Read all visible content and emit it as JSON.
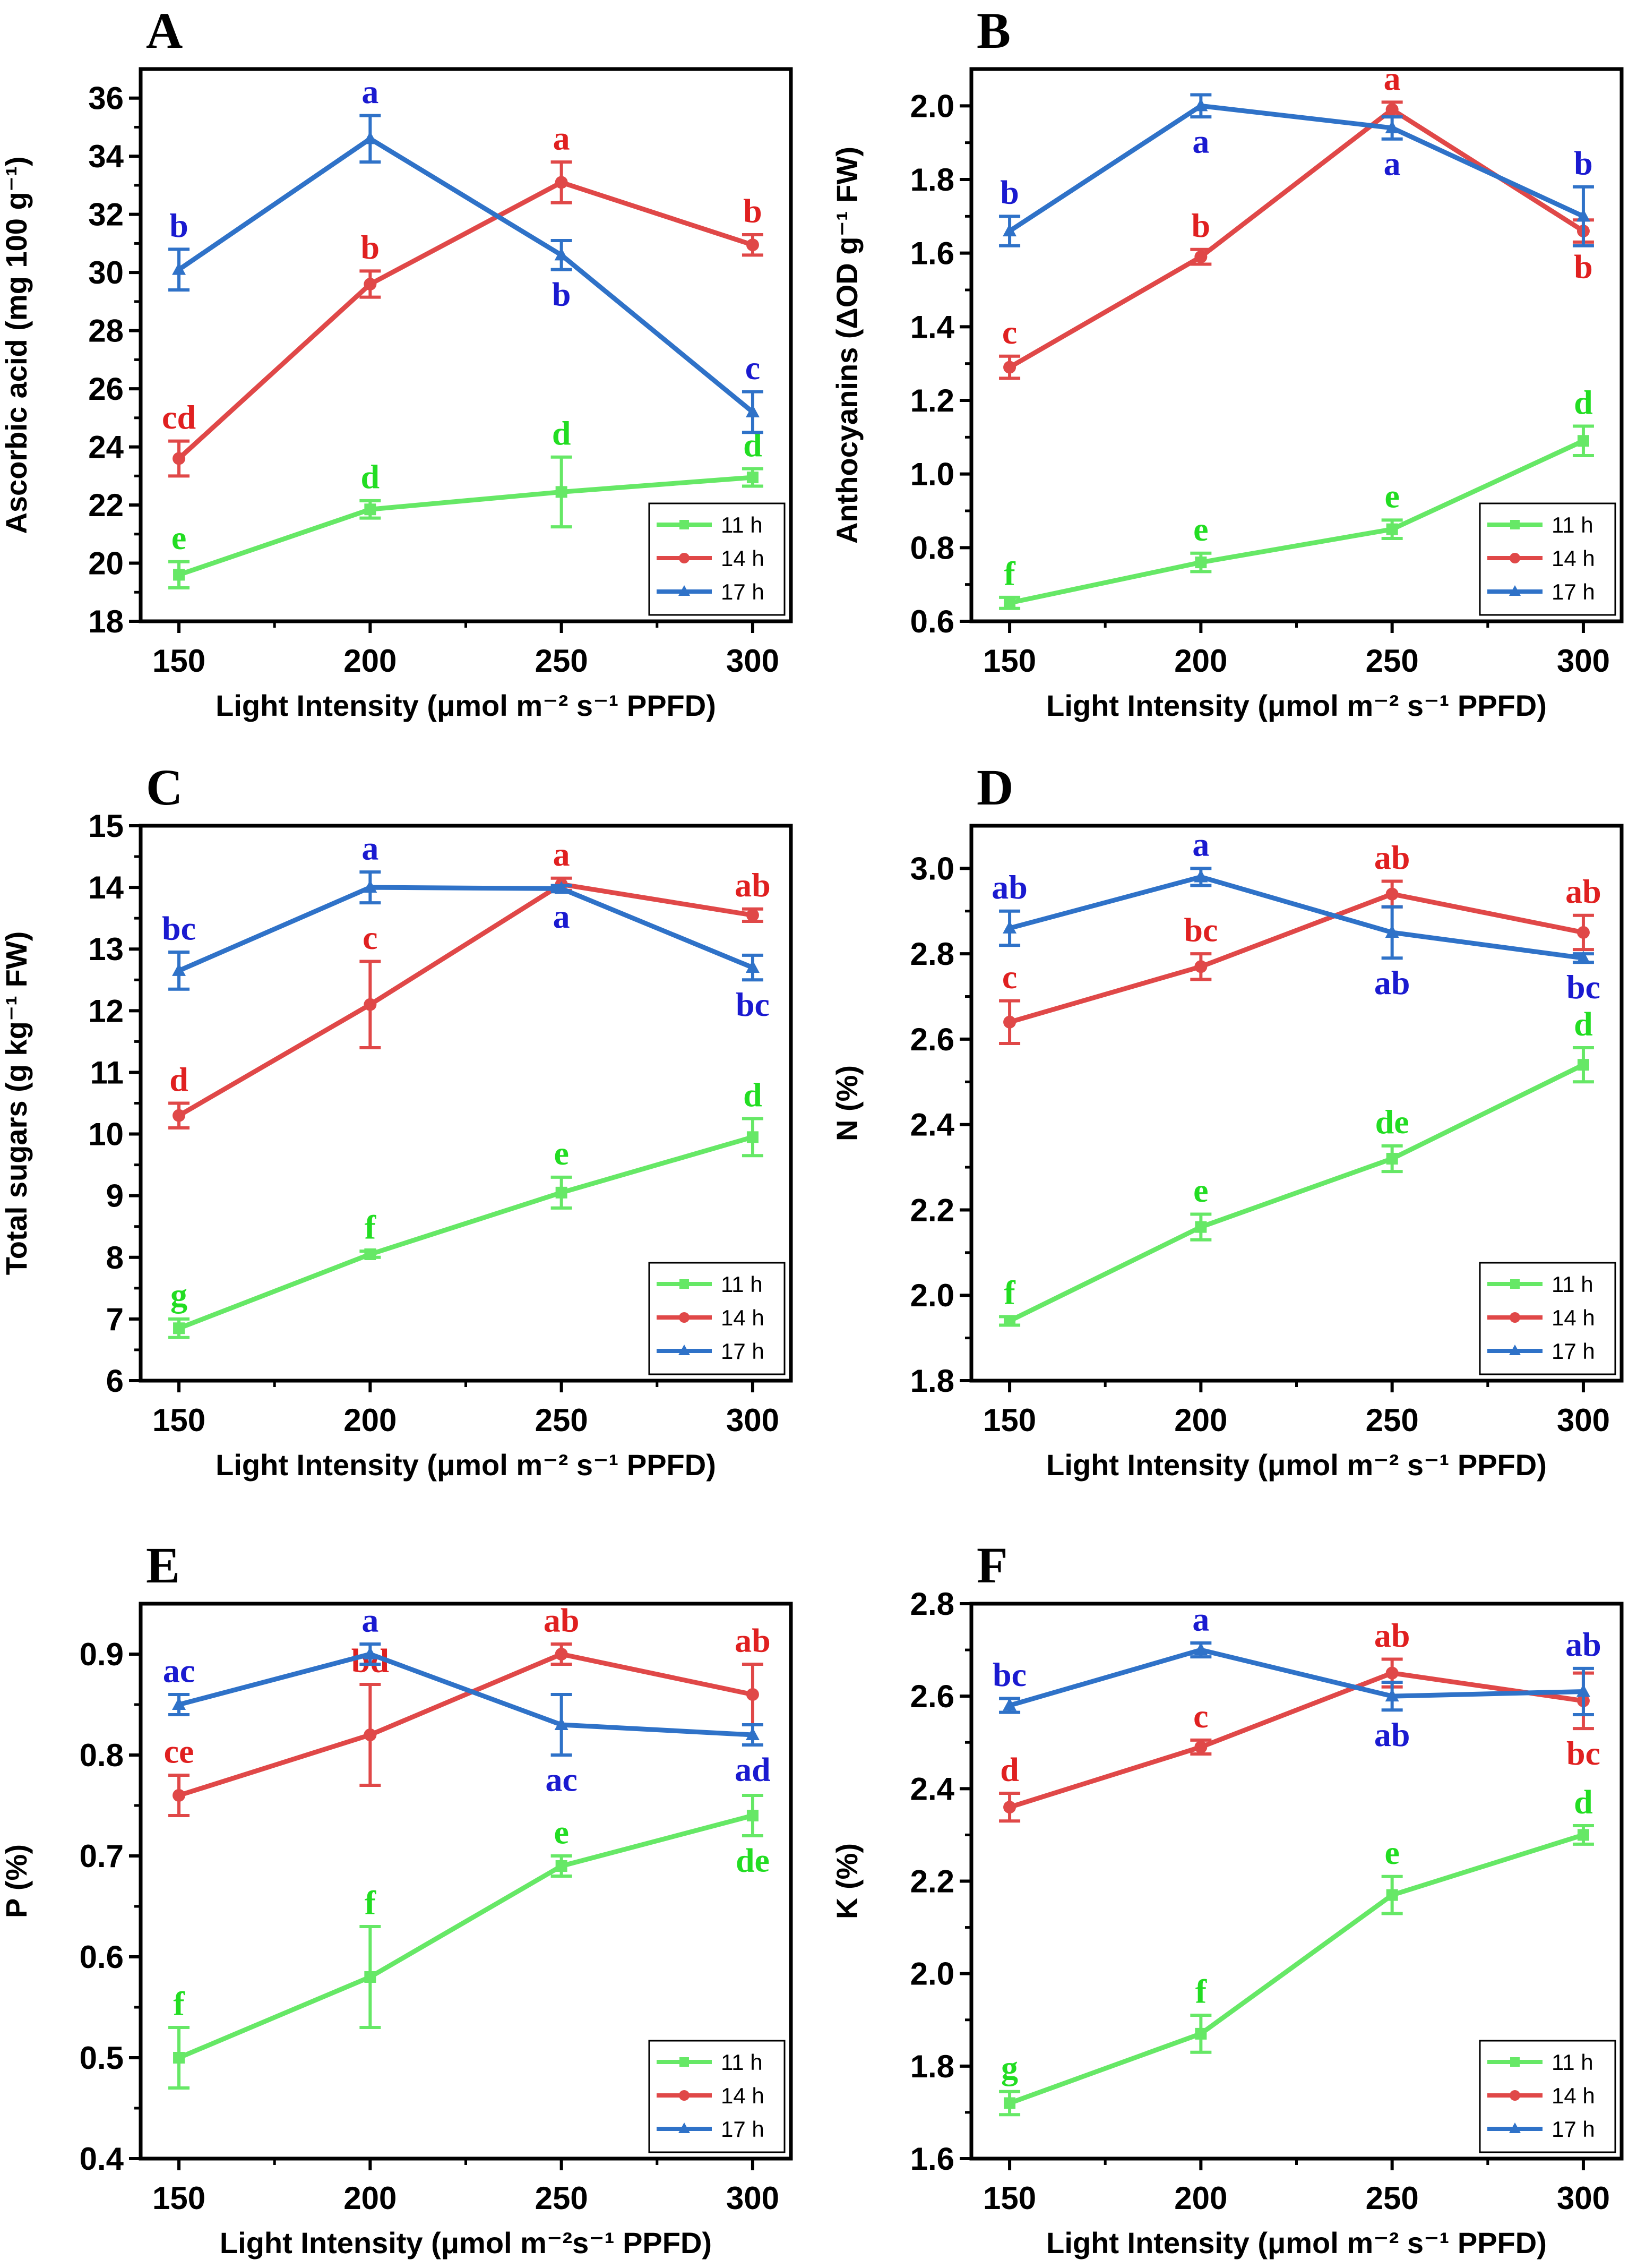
{
  "colors": {
    "11 h": "#66e866",
    "14 h": "#e04848",
    "17 h": "#2f72c8",
    "11 h letters": "#22dd22",
    "14 h letters": "#e02020",
    "17 h letters": "#1a1ad0"
  },
  "chart_data": [
    {
      "type": "line",
      "panel": "A",
      "xlabel": "Light Intensity (μmol m⁻² s⁻¹ PPFD)",
      "ylabel": "Ascorbic acid (mg 100 g⁻¹)",
      "x": [
        150,
        200,
        250,
        300
      ],
      "xlim": [
        150,
        300
      ],
      "ylim": [
        18,
        37
      ],
      "yticks": [
        18,
        20,
        22,
        24,
        26,
        28,
        30,
        32,
        34,
        36
      ],
      "legend_position": "bottom-right",
      "series": [
        {
          "name": "11 h",
          "values": [
            19.6,
            21.85,
            22.45,
            22.95
          ],
          "errors": [
            0.45,
            0.3,
            1.2,
            0.3
          ],
          "letters": [
            "e",
            "d",
            "d",
            "d"
          ],
          "letter_pos": [
            "above",
            "above",
            "above",
            "above"
          ]
        },
        {
          "name": "14 h",
          "values": [
            23.6,
            29.6,
            33.1,
            30.95
          ],
          "errors": [
            0.6,
            0.45,
            0.7,
            0.35
          ],
          "letters": [
            "cd",
            "b",
            "a",
            "b"
          ],
          "letter_pos": [
            "above",
            "above",
            "above",
            "above"
          ]
        },
        {
          "name": "17 h",
          "values": [
            30.1,
            34.6,
            30.6,
            25.2
          ],
          "errors": [
            0.7,
            0.8,
            0.5,
            0.7
          ],
          "letters": [
            "b",
            "a",
            "b",
            "c"
          ],
          "letter_pos": [
            "above",
            "above",
            "below",
            "above"
          ]
        }
      ]
    },
    {
      "type": "line",
      "panel": "B",
      "xlabel": "Light Intensity (μmol m⁻² s⁻¹ PPFD)",
      "ylabel": "Anthocyanins (ΔOD g⁻¹ FW)",
      "x": [
        150,
        200,
        250,
        300
      ],
      "xlim": [
        150,
        300
      ],
      "ylim": [
        0.6,
        2.1
      ],
      "yticks": [
        0.6,
        0.8,
        1.0,
        1.2,
        1.4,
        1.6,
        1.8,
        2.0
      ],
      "legend_position": "bottom-right",
      "series": [
        {
          "name": "11 h",
          "values": [
            0.65,
            0.76,
            0.85,
            1.09
          ],
          "errors": [
            0.015,
            0.025,
            0.025,
            0.04
          ],
          "letters": [
            "f",
            "e",
            "e",
            "d"
          ],
          "letter_pos": [
            "above",
            "above",
            "above",
            "above"
          ]
        },
        {
          "name": "14 h",
          "values": [
            1.29,
            1.59,
            1.99,
            1.66
          ],
          "errors": [
            0.03,
            0.02,
            0.02,
            0.03
          ],
          "letters": [
            "c",
            "b",
            "a",
            "b"
          ],
          "letter_pos": [
            "above",
            "above",
            "above",
            "below"
          ]
        },
        {
          "name": "17 h",
          "values": [
            1.66,
            2.0,
            1.94,
            1.7
          ],
          "errors": [
            0.04,
            0.03,
            0.03,
            0.08
          ],
          "letters": [
            "b",
            "a",
            "a",
            "b"
          ],
          "letter_pos": [
            "above",
            "below",
            "below",
            "above"
          ]
        }
      ]
    },
    {
      "type": "line",
      "panel": "C",
      "xlabel": "Light Intensity (μmol m⁻² s⁻¹ PPFD)",
      "ylabel": "Total sugars (g kg⁻¹ FW)",
      "x": [
        150,
        200,
        250,
        300
      ],
      "xlim": [
        150,
        300
      ],
      "ylim": [
        6,
        15
      ],
      "yticks": [
        6,
        7,
        8,
        9,
        10,
        11,
        12,
        13,
        14,
        15
      ],
      "legend_position": "bottom-right",
      "series": [
        {
          "name": "11 h",
          "values": [
            6.85,
            8.05,
            9.05,
            9.95
          ],
          "errors": [
            0.15,
            0.05,
            0.25,
            0.3
          ],
          "letters": [
            "g",
            "f",
            "e",
            "d"
          ],
          "letter_pos": [
            "above",
            "above",
            "above",
            "above"
          ]
        },
        {
          "name": "14 h",
          "values": [
            10.3,
            12.1,
            14.05,
            13.55
          ],
          "errors": [
            0.2,
            0.7,
            0.1,
            0.1
          ],
          "letters": [
            "d",
            "c",
            "a",
            "ab"
          ],
          "letter_pos": [
            "above",
            "above",
            "above",
            "above"
          ]
        },
        {
          "name": "17 h",
          "values": [
            12.65,
            14.0,
            13.98,
            12.7
          ],
          "errors": [
            0.3,
            0.25,
            0.05,
            0.2
          ],
          "letters": [
            "bc",
            "a",
            "a",
            "bc"
          ],
          "letter_pos": [
            "above",
            "above",
            "below",
            "below"
          ]
        }
      ]
    },
    {
      "type": "line",
      "panel": "D",
      "xlabel": "Light Intensity (μmol m⁻² s⁻¹ PPFD)",
      "ylabel": "N (%)",
      "x": [
        150,
        200,
        250,
        300
      ],
      "xlim": [
        150,
        300
      ],
      "ylim": [
        1.8,
        3.1
      ],
      "yticks": [
        1.8,
        2.0,
        2.2,
        2.4,
        2.6,
        2.8,
        3.0
      ],
      "legend_position": "bottom-right",
      "series": [
        {
          "name": "11 h",
          "values": [
            1.94,
            2.16,
            2.32,
            2.54
          ],
          "errors": [
            0.01,
            0.03,
            0.03,
            0.04
          ],
          "letters": [
            "f",
            "e",
            "de",
            "d"
          ],
          "letter_pos": [
            "above",
            "above",
            "above",
            "above"
          ]
        },
        {
          "name": "14 h",
          "values": [
            2.64,
            2.77,
            2.94,
            2.85
          ],
          "errors": [
            0.05,
            0.03,
            0.03,
            0.04
          ],
          "letters": [
            "c",
            "bc",
            "ab",
            "ab"
          ],
          "letter_pos": [
            "above",
            "above",
            "above",
            "above"
          ]
        },
        {
          "name": "17 h",
          "values": [
            2.86,
            2.98,
            2.85,
            2.79
          ],
          "errors": [
            0.04,
            0.02,
            0.06,
            0.01
          ],
          "letters": [
            "ab",
            "a",
            "ab",
            "bc"
          ],
          "letter_pos": [
            "above",
            "above",
            "below",
            "below"
          ]
        }
      ]
    },
    {
      "type": "line",
      "panel": "E",
      "xlabel": "Light Intensity (μmol m⁻²s⁻¹ PPFD)",
      "ylabel": "P (%)",
      "x": [
        150,
        200,
        250,
        300
      ],
      "xlim": [
        150,
        300
      ],
      "ylim": [
        0.4,
        0.95
      ],
      "yticks": [
        0.4,
        0.5,
        0.6,
        0.7,
        0.8,
        0.9
      ],
      "legend_position": "bottom-right",
      "series": [
        {
          "name": "11 h",
          "values": [
            0.5,
            0.58,
            0.69,
            0.74
          ],
          "errors": [
            0.03,
            0.05,
            0.01,
            0.02
          ],
          "letters": [
            "f",
            "f",
            "e",
            "de"
          ],
          "letter_pos": [
            "above",
            "above",
            "above",
            "below"
          ]
        },
        {
          "name": "14 h",
          "values": [
            0.76,
            0.82,
            0.9,
            0.86
          ],
          "errors": [
            0.02,
            0.05,
            0.01,
            0.03
          ],
          "letters": [
            "ce",
            "bd",
            "ab",
            "ab"
          ],
          "letter_pos": [
            "above",
            "above",
            "above",
            "above"
          ]
        },
        {
          "name": "17 h",
          "values": [
            0.85,
            0.9,
            0.83,
            0.82
          ],
          "errors": [
            0.01,
            0.01,
            0.03,
            0.01
          ],
          "letters": [
            "ac",
            "a",
            "ac",
            "ad"
          ],
          "letter_pos": [
            "above",
            "above",
            "below",
            "below"
          ]
        }
      ]
    },
    {
      "type": "line",
      "panel": "F",
      "xlabel": "Light Intensity (μmol m⁻² s⁻¹ PPFD)",
      "ylabel": "K (%)",
      "x": [
        150,
        200,
        250,
        300
      ],
      "xlim": [
        150,
        300
      ],
      "ylim": [
        1.6,
        2.8
      ],
      "yticks": [
        1.6,
        1.8,
        2.0,
        2.2,
        2.4,
        2.6,
        2.8
      ],
      "legend_position": "bottom-right",
      "series": [
        {
          "name": "11 h",
          "values": [
            1.72,
            1.87,
            2.17,
            2.3
          ],
          "errors": [
            0.025,
            0.04,
            0.04,
            0.02
          ],
          "letters": [
            "g",
            "f",
            "e",
            "d"
          ],
          "letter_pos": [
            "above",
            "above",
            "above",
            "above"
          ]
        },
        {
          "name": "14 h",
          "values": [
            2.36,
            2.49,
            2.65,
            2.59
          ],
          "errors": [
            0.03,
            0.015,
            0.03,
            0.06
          ],
          "letters": [
            "d",
            "c",
            "ab",
            "bc"
          ],
          "letter_pos": [
            "above",
            "above",
            "above",
            "below"
          ]
        },
        {
          "name": "17 h",
          "values": [
            2.58,
            2.7,
            2.6,
            2.61
          ],
          "errors": [
            0.015,
            0.015,
            0.03,
            0.05
          ],
          "letters": [
            "bc",
            "a",
            "ab",
            "ab"
          ],
          "letter_pos": [
            "above",
            "above",
            "below",
            "above"
          ]
        }
      ]
    }
  ]
}
